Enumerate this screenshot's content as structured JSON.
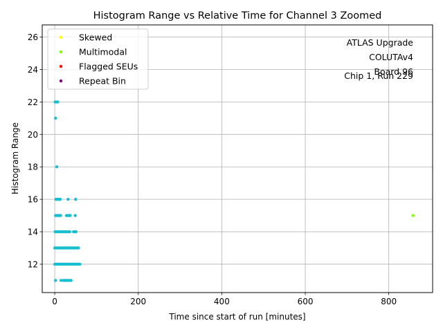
{
  "chart_data": {
    "type": "scatter",
    "title": "Histogram Range vs Relative Time for Channel 3 Zoomed",
    "xlabel": "Time since start of run [minutes]",
    "ylabel": "Histogram Range",
    "xlim": [
      -30,
      905
    ],
    "ylim": [
      10.25,
      26.75
    ],
    "xticks": [
      0,
      200,
      400,
      600,
      800
    ],
    "yticks": [
      12,
      14,
      16,
      18,
      20,
      22,
      24,
      26
    ],
    "grid": true,
    "legend_position": "top-left",
    "legend": [
      {
        "name": "Skewed",
        "color": "#ffff00"
      },
      {
        "name": "Multimodal",
        "color": "#7fff00"
      },
      {
        "name": "Flagged SEUs",
        "color": "#ff0000"
      },
      {
        "name": "Repeat Bin",
        "color": "#800080"
      }
    ],
    "annotation": [
      "ATLAS Upgrade",
      "COLUTAv4",
      "Board 96",
      "Chip 1, Run 229"
    ],
    "series": [
      {
        "color": "#17becf",
        "points": [
          [
            1,
            22
          ],
          [
            4,
            22
          ],
          [
            7,
            22
          ],
          [
            2,
            21
          ],
          [
            5,
            18
          ],
          [
            3,
            16
          ],
          [
            6,
            16
          ],
          [
            10,
            16
          ],
          [
            13,
            16
          ],
          [
            32,
            16
          ],
          [
            50,
            16
          ],
          [
            2,
            15
          ],
          [
            5,
            15
          ],
          [
            8,
            15
          ],
          [
            11,
            15
          ],
          [
            14,
            15
          ],
          [
            28,
            15
          ],
          [
            31,
            15
          ],
          [
            34,
            15
          ],
          [
            37,
            15
          ],
          [
            49,
            15
          ],
          [
            1,
            14
          ],
          [
            4,
            14
          ],
          [
            7,
            14
          ],
          [
            10,
            14
          ],
          [
            13,
            14
          ],
          [
            16,
            14
          ],
          [
            19,
            14
          ],
          [
            22,
            14
          ],
          [
            25,
            14
          ],
          [
            28,
            14
          ],
          [
            33,
            14
          ],
          [
            36,
            14
          ],
          [
            45,
            14
          ],
          [
            48,
            14
          ],
          [
            51,
            14
          ],
          [
            0,
            13
          ],
          [
            3,
            13
          ],
          [
            6,
            13
          ],
          [
            9,
            13
          ],
          [
            12,
            13
          ],
          [
            15,
            13
          ],
          [
            18,
            13
          ],
          [
            21,
            13
          ],
          [
            24,
            13
          ],
          [
            27,
            13
          ],
          [
            30,
            13
          ],
          [
            33,
            13
          ],
          [
            36,
            13
          ],
          [
            39,
            13
          ],
          [
            42,
            13
          ],
          [
            45,
            13
          ],
          [
            48,
            13
          ],
          [
            51,
            13
          ],
          [
            54,
            13
          ],
          [
            57,
            13
          ],
          [
            0,
            12
          ],
          [
            3,
            12
          ],
          [
            6,
            12
          ],
          [
            9,
            12
          ],
          [
            12,
            12
          ],
          [
            15,
            12
          ],
          [
            18,
            12
          ],
          [
            21,
            12
          ],
          [
            24,
            12
          ],
          [
            27,
            12
          ],
          [
            30,
            12
          ],
          [
            33,
            12
          ],
          [
            36,
            12
          ],
          [
            39,
            12
          ],
          [
            42,
            12
          ],
          [
            45,
            12
          ],
          [
            48,
            12
          ],
          [
            51,
            12
          ],
          [
            54,
            12
          ],
          [
            57,
            12
          ],
          [
            60,
            12
          ],
          [
            2,
            11
          ],
          [
            15,
            11
          ],
          [
            21,
            11
          ],
          [
            24,
            11
          ],
          [
            27,
            11
          ],
          [
            30,
            11
          ],
          [
            33,
            11
          ],
          [
            36,
            11
          ],
          [
            39,
            11
          ]
        ]
      },
      {
        "color": "#7fff00",
        "points": [
          [
            858,
            15
          ]
        ]
      }
    ]
  }
}
